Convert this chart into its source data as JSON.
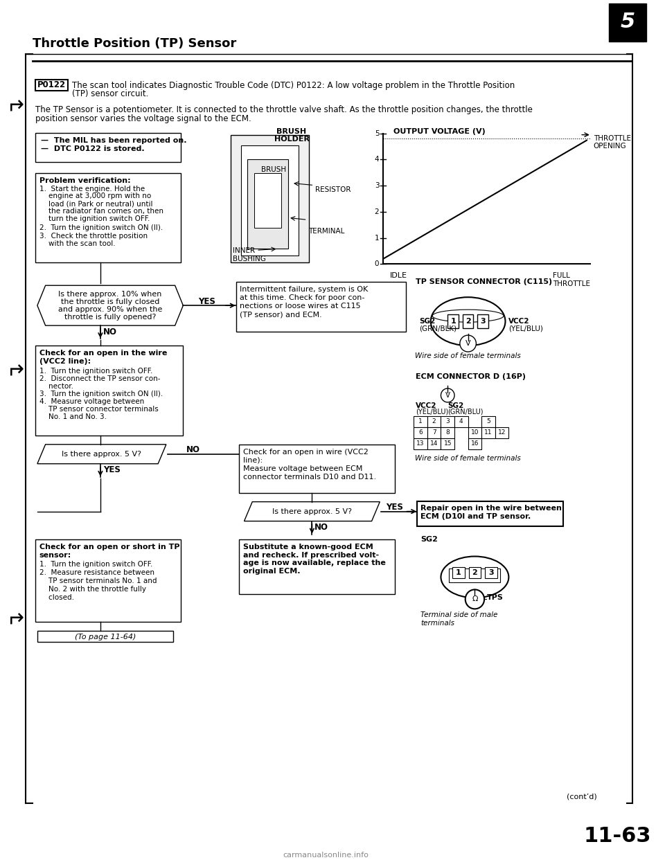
{
  "page_bg": "#ffffff",
  "title": "Throttle Position (TP) Sensor",
  "page_number": "11-63",
  "watermark": "carmanualsonline.info",
  "dtc_code": "P0122",
  "dtc_line1": "The scan tool indicates Diagnostic Trouble Code (DTC) P0122: A low voltage problem in the Throttle Position",
  "dtc_line2": "(TP) sensor circuit.",
  "intro_line1": "The TP Sensor is a potentiometer. It is connected to the throttle valve shaft. As the throttle position changes, the throttle",
  "intro_line2": "position sensor varies the voltage signal to the ECM.",
  "mil_line1": "—  The MIL has been reported on.",
  "mil_line2": "—  DTC P0122 is stored.",
  "prob_title": "Problem verification:",
  "prob_step1a": "1.  Start the engine. Hold the",
  "prob_step1b": "    engine at 3,000 rpm with no",
  "prob_step1c": "    load (in Park or neutral) until",
  "prob_step1d": "    the radiator fan comes on, then",
  "prob_step1e": "    turn the ignition switch OFF.",
  "prob_step2": "2.  Turn the ignition switch ON (II).",
  "prob_step3a": "3.  Check the throttle position",
  "prob_step3b": "    with the scan tool.",
  "box1_line1": "Is there approx. 10% when",
  "box1_line2": "the throttle is fully closed",
  "box1_line3": "and approx. 90% when the",
  "box1_line4": "throttle is fully opened?",
  "yes": "YES",
  "no": "NO",
  "intermit_line1": "Intermittent failure, system is OK",
  "intermit_line2": "at this time. Check for poor con-",
  "intermit_line3": "nections or loose wires at C115",
  "intermit_line4": "(TP sensor) and ECM.",
  "tp_conn_title": "TP SENSOR CONNECTOR (C115)",
  "sg2_grn": "SG2",
  "sg2_blk": "(GRN/BLK)",
  "vcc2_yel": "VCC2",
  "vcc2_blu": "(YEL/BLU)",
  "wire_female": "Wire side of female terminals",
  "check_open_title1": "Check for an open in the wire",
  "check_open_title2": "(VCC2 line):",
  "check_open_s1": "1.  Turn the ignition switch OFF.",
  "check_open_s2a": "2.  Disconnect the TP sensor con-",
  "check_open_s2b": "    nector.",
  "check_open_s3": "3.  Turn the ignition switch ON (II).",
  "check_open_s4a": "4.  Measure voltage between",
  "check_open_s4b": "    TP sensor connector terminals",
  "check_open_s4c": "    No. 1 and No. 3.",
  "approx5v": "Is there approx. 5 V?",
  "ecm_title": "ECM CONNECTOR D (16P)",
  "vcc2_ecm": "VCC2",
  "vcc2_ecm2": "(YEL/BLU)",
  "sg2_ecm": "SG2",
  "sg2_ecm2": "(GRN/BLU)",
  "wire_female2": "Wire side of female terminals",
  "check_vcc2_line1": "Check for an open in wire (VCC2",
  "check_vcc2_line2": "line):",
  "check_vcc2_line3": "Measure voltage between ECM",
  "check_vcc2_line4": "connector terminals D10 and D11.",
  "approx5v2": "Is there approx. 5 V?",
  "repair_line1": "Repair open in the wire between",
  "repair_line2": "ECM (D10l and TP sensor.",
  "check_short_title1": "Check for an open or short in TP",
  "check_short_title2": "sensor:",
  "check_short_s1": "1.  Turn the ignition switch OFF.",
  "check_short_s2a": "2.  Measure resistance between",
  "check_short_s2b": "    TP sensor terminals No. 1 and",
  "check_short_s2c": "    No. 2 with the throttle fully",
  "check_short_s2d": "    closed.",
  "subst_line1": "Substitute a known-good ECM",
  "subst_line2": "and recheck. If prescribed volt-",
  "subst_line3": "age is now available, replace the",
  "subst_line4": "original ECM.",
  "sg2_bottom": "SG2",
  "tps_label": "TPS",
  "terminal_male1": "Terminal side of male",
  "terminal_male2": "terminals",
  "contd": "(cont’d)",
  "to_page": "(To page 11-64)",
  "brush_holder": "BRUSH\nHOLDER",
  "output_voltage": "OUTPUT VOLTAGE (V)",
  "brush_lbl": "BRUSH",
  "resistor_lbl": "RESISTOR",
  "terminal_lbl": "TERMINAL",
  "inner_bushing": "INNER\nBUSHING",
  "throttle_opening": "THROTTLE\nOPENING",
  "idle_lbl": "IDLE",
  "full_throttle": "FULL\nTHROTTLE",
  "ecm_row1": [
    "1",
    "2",
    "3",
    "4",
    "",
    "5"
  ],
  "ecm_row2": [
    "6",
    "7",
    "8",
    "",
    "10",
    "11",
    "12"
  ],
  "ecm_row3": [
    "13",
    "14",
    "15",
    "",
    "16"
  ]
}
